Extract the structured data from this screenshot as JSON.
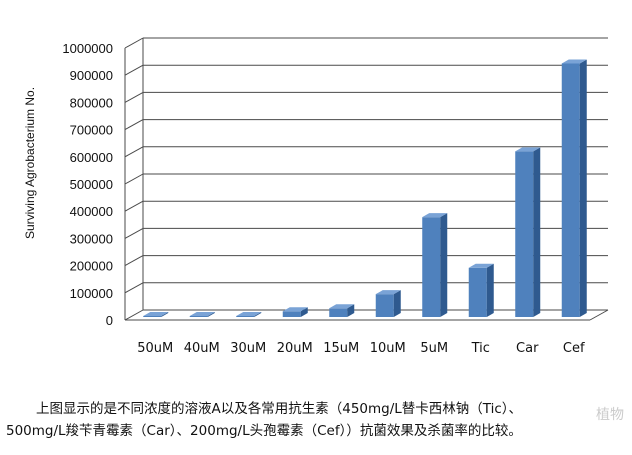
{
  "chart_data": {
    "type": "bar",
    "categories": [
      "50uM",
      "40uM",
      "30uM",
      "20uM",
      "15uM",
      "10uM",
      "5uM",
      "Tic",
      "Car",
      "Cef"
    ],
    "values": [
      6000,
      5000,
      12000,
      32000,
      43000,
      95000,
      378000,
      192000,
      620000,
      943000
    ],
    "title": "",
    "xlabel": "",
    "ylabel": "Surviving Agrobacterium No.",
    "ylim": [
      0,
      1000000
    ],
    "yticks": [
      0,
      100000,
      200000,
      300000,
      400000,
      500000,
      600000,
      700000,
      800000,
      900000,
      1000000
    ],
    "grid": true,
    "legend": "none",
    "colors": {
      "bar_front": "#4f81bd",
      "bar_side": "#2f5a8f",
      "bar_top": "#7aa3d6",
      "grid": "#4a4a4a"
    }
  },
  "caption": {
    "line1": "上图显示的是不同浓度的溶液A以及各常用抗生素（450mg/L替卡西林钠（Tic）、",
    "line2": "500mg/L羧苄青霉素（Car）、200mg/L头孢霉素（Cef））抗菌效果及杀菌率的比较。"
  },
  "watermark": "植物"
}
